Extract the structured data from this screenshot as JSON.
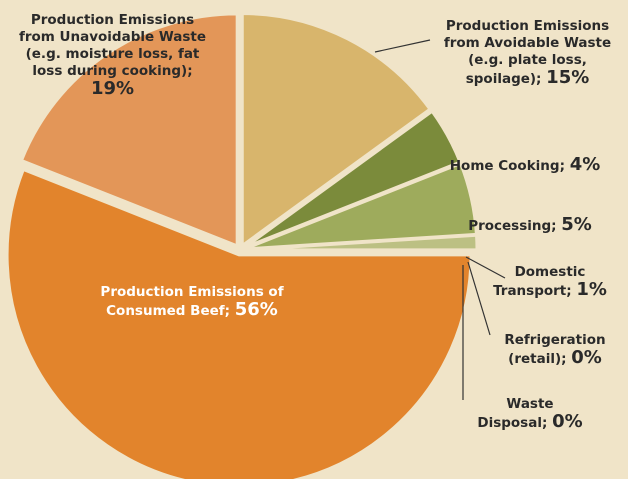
{
  "chart_data": {
    "type": "pie",
    "categories": [
      "Production Emissions from Avoidable Waste (e.g. plate loss, spoilage);",
      "Home Cooking;",
      "Processing;",
      "Domestic Transport;",
      "Refrigeration (retail);",
      "Waste Disposal;",
      "Production Emissions of Consumed Beef;",
      "Production Emissions from Unavoidable Waste (e.g. moisture loss, fat loss during cooking);"
    ],
    "values": [
      15,
      4,
      5,
      1,
      0,
      0,
      56,
      19
    ],
    "value_labels": [
      "15%",
      "4%",
      "5%",
      "1%",
      "0%",
      "0%",
      "56%",
      "19%"
    ],
    "colors": [
      "#d8b56c",
      "#7b8b3b",
      "#9eab5c",
      "#bcc083",
      "#c9c79a",
      "#d4cfa8",
      "#e2842c",
      "#e39658"
    ]
  }
}
